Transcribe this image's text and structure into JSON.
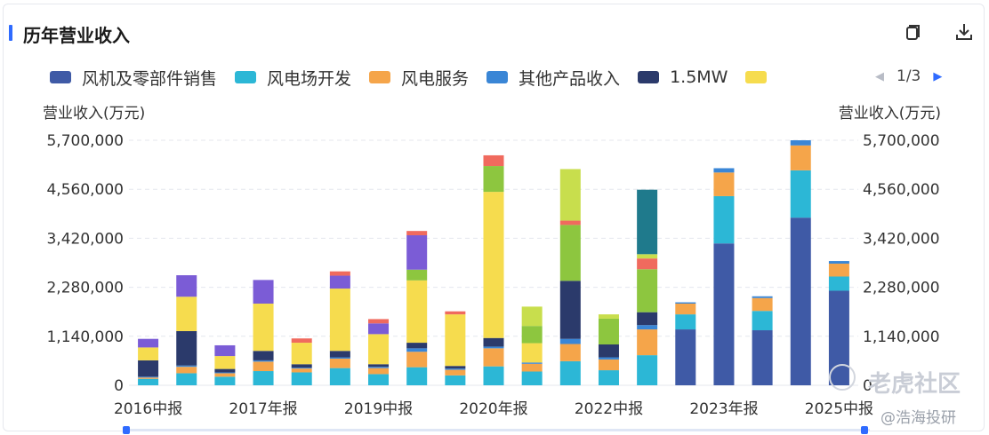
{
  "header": {
    "title": "历年营业收入"
  },
  "toolbar": {
    "icons": [
      "copy-icon",
      "download-icon"
    ]
  },
  "legend": {
    "items": [
      {
        "label": "风机及零部件销售",
        "color": "#3f5aa6"
      },
      {
        "label": "风电场开发",
        "color": "#2cb7d6"
      },
      {
        "label": "风电服务",
        "color": "#f5a54a"
      },
      {
        "label": "其他产品收入",
        "color": "#3a86d6"
      },
      {
        "label": "1.5MW",
        "color": "#2b3a6b"
      },
      {
        "label": "",
        "color": "#f6dc4e"
      }
    ],
    "page": "1/3"
  },
  "watermark": {
    "main": "老虎社区",
    "sub": "@浩海投研"
  },
  "chart_data": {
    "type": "bar",
    "stacked": true,
    "ylabel_left": "营业收入(万元)",
    "ylabel_right": "营业收入(万元)",
    "ylim": [
      0,
      5700000
    ],
    "yticks": [
      "0",
      "1,140,000",
      "2,280,000",
      "3,420,000",
      "4,560,000",
      "5,700,000"
    ],
    "x_tick_labels": [
      "2016中报",
      "2017年报",
      "2019中报",
      "2020年报",
      "2022中报",
      "2023年报",
      "2025中报"
    ],
    "categories": [
      "2016中报",
      "2016年报",
      "2017中报",
      "2017年报",
      "2018中报",
      "2018年报",
      "2019中报",
      "2019年报",
      "2020中报",
      "2020年报",
      "2021中报",
      "2021年报",
      "2022中报",
      "2022年报",
      "2023中报",
      "2023年报",
      "2024中报",
      "2024年报",
      "2025中报"
    ],
    "series": [
      {
        "name": "风机及零部件销售",
        "color": "#3f5aa6",
        "values": [
          0,
          0,
          0,
          0,
          0,
          0,
          0,
          0,
          0,
          0,
          0,
          0,
          0,
          0,
          1300000,
          3300000,
          1280000,
          3900000,
          2200000
        ]
      },
      {
        "name": "风电场开发",
        "color": "#2cb7d6",
        "values": [
          150000,
          280000,
          200000,
          330000,
          300000,
          400000,
          260000,
          420000,
          230000,
          440000,
          320000,
          560000,
          350000,
          700000,
          350000,
          1100000,
          450000,
          1100000,
          330000
        ]
      },
      {
        "name": "风电服务",
        "color": "#f5a54a",
        "values": [
          30000,
          150000,
          80000,
          220000,
          90000,
          220000,
          140000,
          360000,
          130000,
          420000,
          180000,
          400000,
          250000,
          600000,
          250000,
          550000,
          300000,
          580000,
          300000
        ]
      },
      {
        "name": "其他产品收入",
        "color": "#3a86d6",
        "values": [
          20000,
          30000,
          20000,
          30000,
          20000,
          30000,
          30000,
          80000,
          30000,
          40000,
          30000,
          120000,
          50000,
          100000,
          30000,
          100000,
          40000,
          120000,
          60000
        ]
      },
      {
        "name": "1.5MW",
        "color": "#2b3a6b",
        "values": [
          380000,
          800000,
          80000,
          220000,
          80000,
          150000,
          60000,
          130000,
          60000,
          200000,
          0,
          1350000,
          300000,
          300000,
          0,
          0,
          0,
          0,
          0
        ]
      },
      {
        "name": "",
        "color": "#f6dc4e",
        "values": [
          300000,
          800000,
          300000,
          1100000,
          500000,
          1450000,
          700000,
          1450000,
          1200000,
          3400000,
          450000,
          0,
          0,
          0,
          0,
          0,
          0,
          0,
          0
        ]
      },
      {
        "name": "",
        "color": "#8dc63f",
        "values": [
          0,
          0,
          0,
          0,
          0,
          0,
          0,
          250000,
          0,
          600000,
          400000,
          1300000,
          600000,
          1000000,
          0,
          0,
          0,
          0,
          0
        ]
      },
      {
        "name": "",
        "color": "#7b5cd6",
        "values": [
          200000,
          500000,
          250000,
          550000,
          0,
          300000,
          250000,
          800000,
          0,
          0,
          0,
          0,
          0,
          0,
          0,
          0,
          0,
          0,
          0
        ]
      },
      {
        "name": "",
        "color": "#f06a5e",
        "values": [
          0,
          0,
          0,
          0,
          100000,
          100000,
          100000,
          100000,
          70000,
          250000,
          0,
          100000,
          0,
          250000,
          0,
          0,
          0,
          0,
          0
        ]
      },
      {
        "name": "",
        "color": "#c8de4d",
        "values": [
          0,
          0,
          0,
          0,
          0,
          0,
          0,
          0,
          0,
          0,
          450000,
          1200000,
          100000,
          100000,
          0,
          0,
          0,
          0,
          0
        ]
      },
      {
        "name": "",
        "color": "#1f7a8c",
        "values": [
          0,
          0,
          0,
          0,
          0,
          0,
          0,
          0,
          0,
          0,
          0,
          0,
          0,
          1500000,
          0,
          0,
          0,
          0,
          0
        ]
      }
    ]
  }
}
